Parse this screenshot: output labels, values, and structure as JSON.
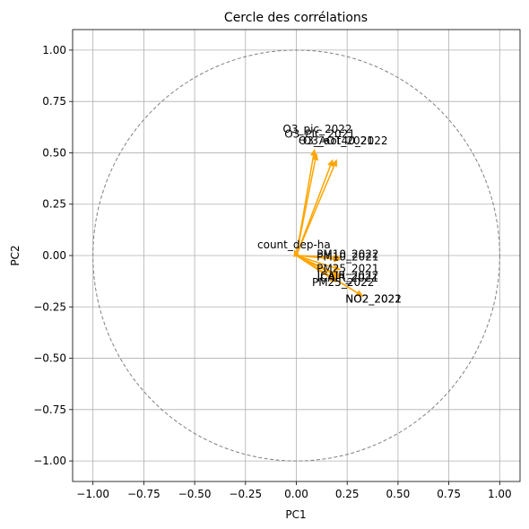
{
  "chart_data": {
    "type": "scatter",
    "title": "Cercle des corrélations",
    "xlabel": "PC1",
    "ylabel": "PC2",
    "xlim": [
      -1.1,
      1.1
    ],
    "ylim": [
      -1.1,
      1.1
    ],
    "xticks": [
      -1.0,
      -0.75,
      -0.5,
      -0.25,
      0.0,
      0.25,
      0.5,
      0.75,
      1.0
    ],
    "yticks": [
      -1.0,
      -0.75,
      -0.5,
      -0.25,
      0.0,
      0.25,
      0.5,
      0.75,
      1.0
    ],
    "xtick_labels": [
      "−1.00",
      "−0.75",
      "−0.50",
      "−0.25",
      "0.00",
      "0.25",
      "0.50",
      "0.75",
      "1.00"
    ],
    "ytick_labels": [
      "−1.00",
      "−0.75",
      "−0.50",
      "−0.25",
      "0.00",
      "0.25",
      "0.50",
      "0.75",
      "1.00"
    ],
    "grid": true,
    "unit_circle": true,
    "arrow_color": "#ffa500",
    "circle_color": "#808080",
    "vectors": [
      {
        "label": "O3_pic_2022",
        "x": 0.09,
        "y": 0.52
      },
      {
        "label": "O3_PIC_2021",
        "x": 0.1,
        "y": 0.5
      },
      {
        "label": "O3_AOT40_2022",
        "x": 0.2,
        "y": 0.47
      },
      {
        "label": "O3_aot_2021",
        "x": 0.18,
        "y": 0.47
      },
      {
        "label": "count_dep-ha",
        "x": -0.01,
        "y": 0.03
      },
      {
        "label": "PM10_2022",
        "x": 0.22,
        "y": -0.01
      },
      {
        "label": "PM10_2021",
        "x": 0.22,
        "y": -0.02
      },
      {
        "label": "PM25_2021",
        "x": 0.22,
        "y": -0.07
      },
      {
        "label": "ICAIR_2022",
        "x": 0.22,
        "y": -0.1
      },
      {
        "label": "ICAIR_2021",
        "x": 0.22,
        "y": -0.11
      },
      {
        "label": "PM25_2022",
        "x": 0.2,
        "y": -0.13
      },
      {
        "label": "NO2_2022",
        "x": 0.33,
        "y": -0.2
      },
      {
        "label": "NO2_2021",
        "x": 0.33,
        "y": -0.2
      }
    ]
  }
}
